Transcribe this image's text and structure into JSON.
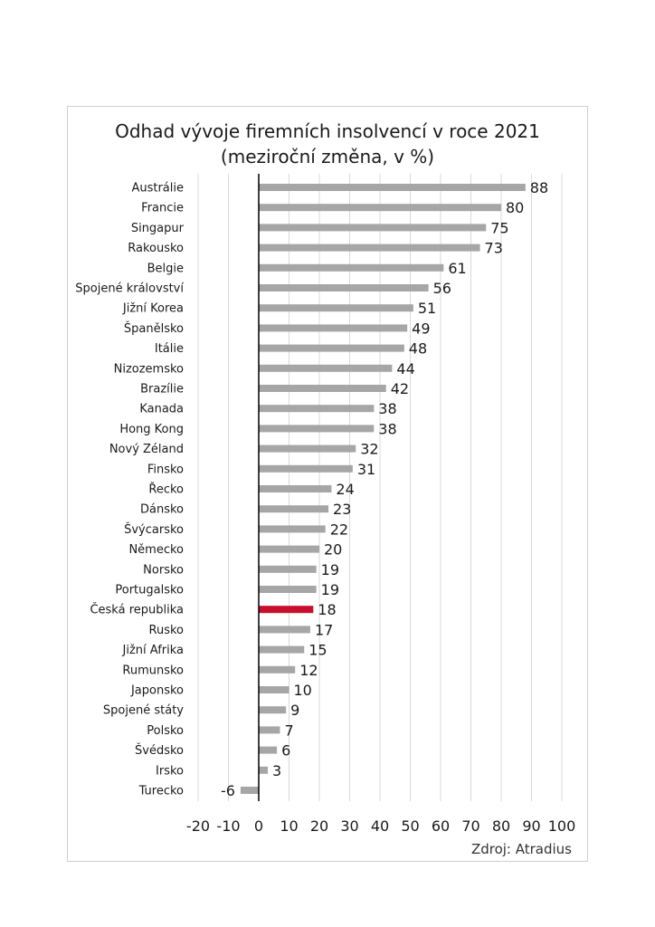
{
  "chart_data": {
    "type": "bar",
    "orientation": "horizontal",
    "title": "Odhad vývoje firemních insolvencí v roce 2021",
    "subtitle": "(meziroční změna, v %)",
    "categories": [
      "Austrálie",
      "Francie",
      "Singapur",
      "Rakousko",
      "Belgie",
      "Spojené království",
      "Jižní Korea",
      "Španělsko",
      "Itálie",
      "Nizozemsko",
      "Brazílie",
      "Kanada",
      "Hong Kong",
      "Nový Zéland",
      "Finsko",
      "Řecko",
      "Dánsko",
      "Švýcarsko",
      "Německo",
      "Norsko",
      "Portugalsko",
      "Česká republika",
      "Rusko",
      "Jižní Afrika",
      "Rumunsko",
      "Japonsko",
      "Spojené státy",
      "Polsko",
      "Švédsko",
      "Irsko",
      "Turecko"
    ],
    "values": [
      88,
      80,
      75,
      73,
      61,
      56,
      51,
      49,
      48,
      44,
      42,
      38,
      38,
      32,
      31,
      24,
      23,
      22,
      20,
      19,
      19,
      18,
      17,
      15,
      12,
      10,
      9,
      7,
      6,
      3,
      -6
    ],
    "value_labels": [
      "88",
      "80",
      "75",
      "73",
      "61",
      "56",
      "51",
      "49",
      "48",
      "44",
      "42",
      "38",
      "38",
      "32",
      "31",
      "24",
      "23",
      "22",
      "20",
      "19",
      "19",
      "18",
      "17",
      "15",
      "12",
      "10",
      "9",
      "7",
      "6",
      "3",
      "-6"
    ],
    "xlim": [
      -20,
      100
    ],
    "x_ticks": [
      -20,
      -10,
      0,
      10,
      20,
      30,
      40,
      50,
      60,
      70,
      80,
      90,
      100
    ],
    "x_tick_labels": [
      "-20",
      "-10",
      "0",
      "10",
      "20",
      "30",
      "40",
      "50",
      "60",
      "70",
      "80",
      "90",
      "100"
    ],
    "grid": true,
    "highlight": "Česká republika",
    "colors": {
      "bar": "#a6a6a6",
      "highlight": "#c8102e",
      "grid": "#d9d9d9",
      "axis": "#000000"
    },
    "source": "Zdroj: Atradius"
  }
}
